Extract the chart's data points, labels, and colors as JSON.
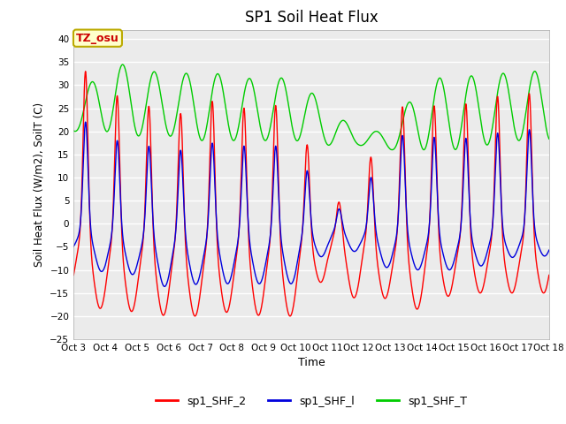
{
  "title": "SP1 Soil Heat Flux",
  "xlabel": "Time",
  "ylabel": "Soil Heat Flux (W/m2), SoilT (C)",
  "ylim": [
    -25,
    42
  ],
  "yticks": [
    -25,
    -20,
    -15,
    -10,
    -5,
    0,
    5,
    10,
    15,
    20,
    25,
    30,
    35,
    40
  ],
  "xlim_days": [
    3,
    18
  ],
  "xtick_labels": [
    "Oct 3",
    "Oct 4",
    "Oct 5",
    "Oct 6",
    "Oct 7",
    "Oct 8",
    "Oct 9",
    "Oct 10",
    "Oct 11",
    "Oct 12",
    "Oct 13",
    "Oct 14",
    "Oct 15",
    "Oct 16",
    "Oct 17",
    "Oct 18"
  ],
  "color_shf2": "#ff0000",
  "color_shf1": "#0000dd",
  "color_shft": "#00cc00",
  "bg_color": "#ebebeb",
  "grid_color": "#ffffff",
  "legend_labels": [
    "sp1_SHF_2",
    "sp1_SHF_l",
    "sp1_SHF_T"
  ],
  "annotation_text": "TZ_osu",
  "annotation_bg": "#ffffcc",
  "annotation_border": "#bbaa00"
}
